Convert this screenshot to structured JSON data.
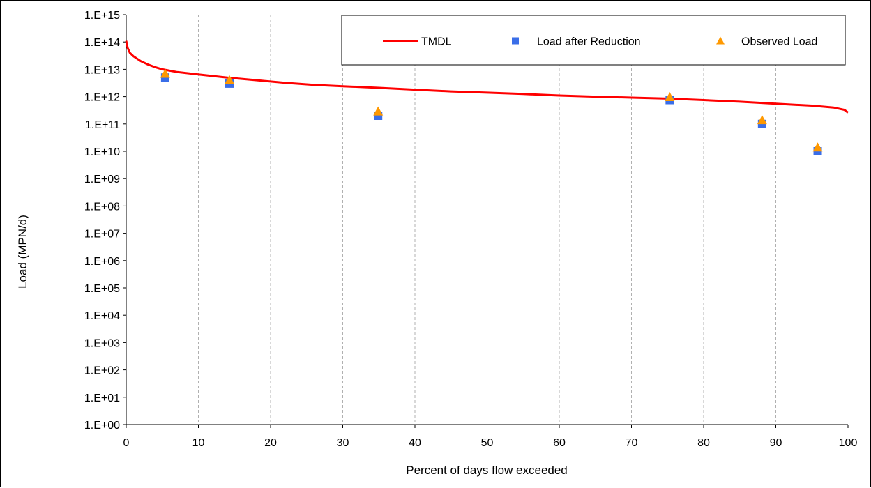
{
  "chart_data": {
    "type": "line",
    "title": "",
    "xlabel": "Percent of days flow exceeded",
    "ylabel": "Load (MPN/d)",
    "xlim": [
      0,
      100
    ],
    "ylim_exponent": [
      0,
      15
    ],
    "y_scale": "log",
    "x_ticks": [
      0,
      10,
      20,
      30,
      40,
      50,
      60,
      70,
      80,
      90,
      100
    ],
    "x_tick_labels": [
      "0",
      "10",
      "20",
      "30",
      "40",
      "50",
      "60",
      "70",
      "80",
      "90",
      "100"
    ],
    "y_ticks": [
      1.0,
      10.0,
      100.0,
      1000.0,
      10000.0,
      100000.0,
      1000000.0,
      10000000.0,
      100000000.0,
      1000000000.0,
      10000000000.0,
      100000000000.0,
      1000000000000.0,
      10000000000000.0,
      100000000000000.0,
      1000000000000000.0
    ],
    "y_tick_labels": [
      "1.E+00",
      "1.E+01",
      "1.E+02",
      "1.E+03",
      "1.E+04",
      "1.E+05",
      "1.E+06",
      "1.E+07",
      "1.E+08",
      "1.E+09",
      "1.E+10",
      "1.E+11",
      "1.E+12",
      "1.E+13",
      "1.E+14",
      "1.E+15"
    ],
    "grid": "vertical-dashed",
    "legend_position": "top-right",
    "series": [
      {
        "name": "TMDL",
        "kind": "line",
        "color": "#ff0000",
        "x": [
          0,
          0.2,
          0.5,
          1,
          2,
          3,
          4,
          5,
          7,
          10,
          14,
          18,
          22,
          26,
          30,
          35,
          40,
          45,
          50,
          55,
          60,
          65,
          70,
          75,
          80,
          85,
          90,
          95,
          98,
          99.5,
          100
        ],
        "y": [
          110000000000000.0,
          60000000000000.0,
          40000000000000.0,
          30000000000000.0,
          20000000000000.0,
          15000000000000.0,
          12000000000000.0,
          10000000000000.0,
          8000000000000.0,
          6500000000000.0,
          5000000000000.0,
          4000000000000.0,
          3200000000000.0,
          2700000000000.0,
          2400000000000.0,
          2100000000000.0,
          1800000000000.0,
          1550000000000.0,
          1400000000000.0,
          1250000000000.0,
          1100000000000.0,
          1000000000000.0,
          920000000000.0,
          850000000000.0,
          750000000000.0,
          650000000000.0,
          550000000000.0,
          470000000000.0,
          400000000000.0,
          330000000000.0,
          260000000000.0
        ]
      },
      {
        "name": "Load after Reduction",
        "kind": "scatter",
        "marker": "square",
        "color": "#3a6ee8",
        "x": [
          5.4,
          14.3,
          34.9,
          75.3,
          88.1,
          95.8
        ],
        "y": [
          5000000000000.0,
          3000000000000.0,
          200000000000.0,
          750000000000.0,
          100000000000.0,
          10000000000.0
        ]
      },
      {
        "name": "Observed Load",
        "kind": "scatter",
        "marker": "triangle",
        "color": "#ff9900",
        "x": [
          5.4,
          14.3,
          34.9,
          75.3,
          88.1,
          95.8
        ],
        "y": [
          7000000000000.0,
          4100000000000.0,
          290000000000.0,
          980000000000.0,
          140000000000.0,
          14000000000.0
        ]
      }
    ]
  }
}
